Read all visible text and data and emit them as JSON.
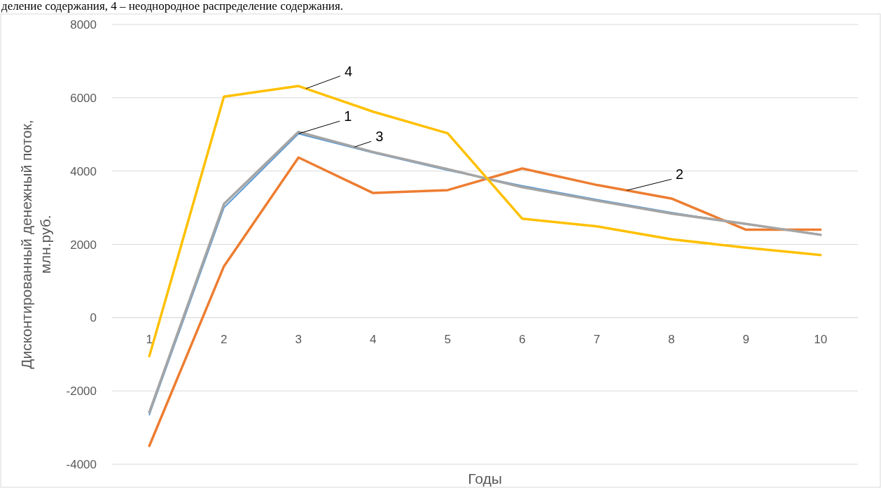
{
  "chart_data": {
    "type": "line",
    "xlabel": "Годы",
    "ylabel": "Дисконтированный денежный поток, млн.руб.",
    "categories": [
      "1",
      "2",
      "3",
      "4",
      "5",
      "6",
      "7",
      "8",
      "9",
      "10"
    ],
    "series": [
      {
        "name": "1",
        "color": "#5b9bd5",
        "values": [
          -2650,
          3000,
          5020,
          4500,
          4020,
          3600,
          3220,
          2870,
          2550,
          2270
        ]
      },
      {
        "name": "2",
        "color": "#ed7d31",
        "values": [
          -3500,
          1400,
          4370,
          3400,
          3480,
          4070,
          3620,
          3250,
          2400,
          2400
        ]
      },
      {
        "name": "3",
        "color": "#a5a5a5",
        "values": [
          -2580,
          3100,
          5070,
          4520,
          4050,
          3560,
          3190,
          2840,
          2560,
          2260
        ]
      },
      {
        "name": "4",
        "color": "#ffc000",
        "values": [
          -1050,
          6030,
          6320,
          5620,
          5030,
          2700,
          2490,
          2140,
          1910,
          1710
        ]
      }
    ],
    "ylim": [
      -4000,
      8000
    ],
    "yticks": [
      -4000,
      -2000,
      0,
      2000,
      4000,
      6000,
      8000
    ],
    "grid": "y",
    "line_style": "solid",
    "annotations": [
      "деление содержания, 4 – неоднородное распределение содержания."
    ]
  }
}
